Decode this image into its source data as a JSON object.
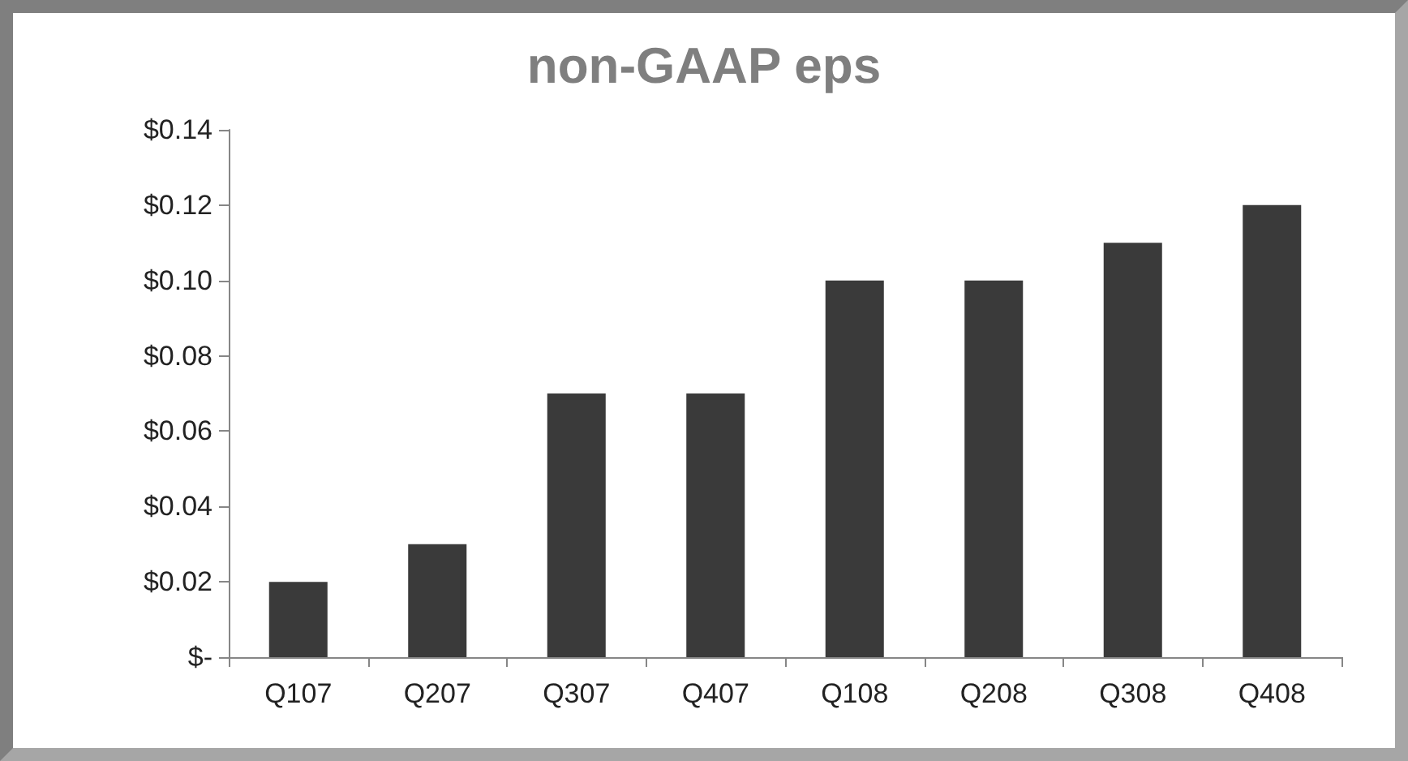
{
  "chart_data": {
    "type": "bar",
    "title": "non-GAAP eps",
    "categories": [
      "Q107",
      "Q207",
      "Q307",
      "Q407",
      "Q108",
      "Q208",
      "Q308",
      "Q408"
    ],
    "values": [
      0.02,
      0.03,
      0.07,
      0.07,
      0.1,
      0.1,
      0.11,
      0.12
    ],
    "color": "#3a3a3a",
    "ylim": [
      0,
      0.14
    ],
    "yticks": [
      {
        "value": 0,
        "label": "$-"
      },
      {
        "value": 0.02,
        "label": "$0.02"
      },
      {
        "value": 0.04,
        "label": "$0.04"
      },
      {
        "value": 0.06,
        "label": "$0.06"
      },
      {
        "value": 0.08,
        "label": "$0.08"
      },
      {
        "value": 0.1,
        "label": "$0.10"
      },
      {
        "value": 0.12,
        "label": "$0.12"
      },
      {
        "value": 0.14,
        "label": "$0.14"
      }
    ],
    "grid": false
  }
}
